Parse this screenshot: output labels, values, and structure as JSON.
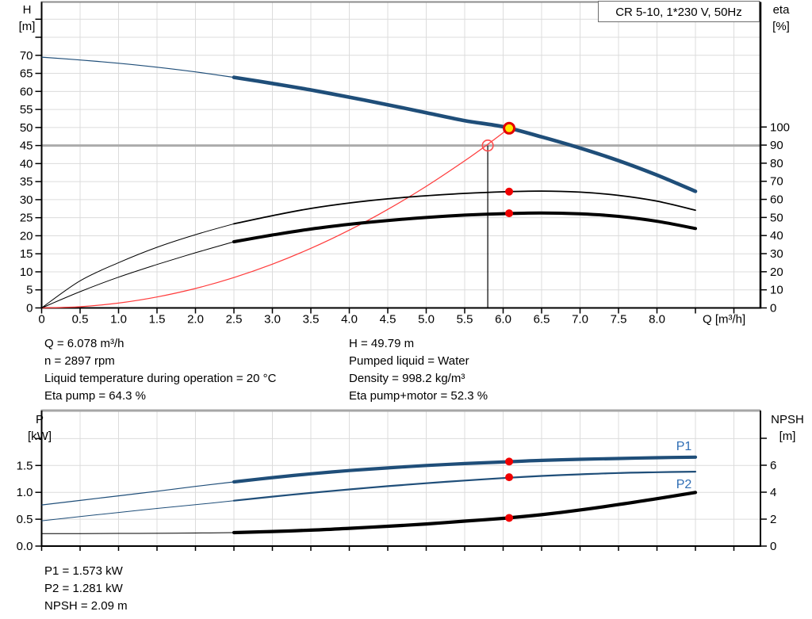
{
  "title_box": {
    "label": "CR 5-10, 1*230 V, 50Hz"
  },
  "colors": {
    "curve_blue": "#1F4E79",
    "label_blue": "#2E6DB4",
    "red": "#F00000",
    "red_line": "#FF3B3B",
    "yellow": "#FFE800",
    "black": "#000000",
    "grid": "#DCDCDC",
    "grid_strong": "#ABABAB",
    "border_gray": "#8C8C8C",
    "border_gray_light": "#A6A6A6"
  },
  "info_top": {
    "left": [
      "Q = 6.078 m³/h",
      "n = 2897 rpm",
      "Liquid temperature during operation = 20 °C",
      "Eta pump = 64.3 %"
    ],
    "right": [
      "H = 49.79 m",
      "Pumped liquid = Water",
      "Density = 998.2 kg/m³",
      "Eta pump+motor = 52.3 %"
    ]
  },
  "info_bottom": {
    "lines": [
      "P1 = 1.573 kW",
      "P2 = 1.281 kW",
      "NPSH = 2.09 m"
    ]
  },
  "chart_data": [
    {
      "type": "line",
      "title": "CR 5-10, 1*230 V, 50Hz",
      "xlabel": "Q [m³/h]",
      "ylabel_left": "H [m]",
      "ylabel_right": "eta [%]",
      "xlim": [
        0,
        9.35
      ],
      "ylim_left": [
        0,
        84.8
      ],
      "ylim_right": [
        0,
        100
      ],
      "grid": true,
      "axes": {
        "x": {
          "tick_values": [
            0,
            0.5,
            1,
            1.5,
            2,
            2.5,
            3,
            3.5,
            4,
            4.5,
            5,
            5.5,
            6,
            6.5,
            7,
            7.5,
            8
          ],
          "tick_labels": [
            "0",
            "0.5",
            "1.0",
            "1.5",
            "2.0",
            "2.5",
            "3.0",
            "3.5",
            "4.0",
            "4.5",
            "5.0",
            "5.5",
            "6.0",
            "6.5",
            "7.0",
            "7.5",
            "8.0"
          ],
          "extra_ticks": [
            8.5,
            9
          ],
          "unit": "Q [m³/h]"
        },
        "left": {
          "tick_values": [
            0,
            5,
            10,
            15,
            20,
            25,
            30,
            35,
            40,
            45,
            50,
            55,
            60,
            65,
            70
          ],
          "tick_labels": [
            "0",
            "5",
            "10",
            "15",
            "20",
            "25",
            "30",
            "35",
            "40",
            "45",
            "50",
            "55",
            "60",
            "65",
            "70"
          ],
          "extra_ticks": [
            75,
            80
          ],
          "unit": [
            "H",
            "[m]"
          ]
        },
        "right": {
          "tick_values": [
            0,
            10,
            20,
            30,
            40,
            50,
            60,
            70,
            80,
            90,
            100
          ],
          "tick_labels": [
            "0",
            "10",
            "20",
            "30",
            "40",
            "50",
            "60",
            "70",
            "80",
            "90",
            "100"
          ],
          "extra_ticks": [],
          "unit": [
            "eta",
            "[%]"
          ]
        }
      },
      "series": [
        {
          "name": "system-curve",
          "axis": "left",
          "color_key": "red_line",
          "width_thin": 1.2,
          "width_thick": 1.2,
          "split": 99,
          "points": [
            [
              0,
              0
            ],
            [
              0.5,
              0.34
            ],
            [
              1,
              1.35
            ],
            [
              1.5,
              3.03
            ],
            [
              2,
              5.39
            ],
            [
              2.5,
              8.42
            ],
            [
              3,
              12.13
            ],
            [
              3.5,
              16.51
            ],
            [
              4,
              21.56
            ],
            [
              4.5,
              27.29
            ],
            [
              5,
              33.69
            ],
            [
              5.5,
              40.77
            ],
            [
              5.8,
              45.34
            ],
            [
              6.078,
              49.79
            ]
          ]
        },
        {
          "name": "eta-pump",
          "axis": "right",
          "color_key": "black",
          "width_thin": 1,
          "width_thick": 1.8,
          "split": 2.5,
          "points": [
            [
              0,
              0
            ],
            [
              0.5,
              15
            ],
            [
              1,
              25
            ],
            [
              1.5,
              33.5
            ],
            [
              2,
              40.5
            ],
            [
              2.5,
              46.5
            ],
            [
              3,
              51
            ],
            [
              3.5,
              55
            ],
            [
              4,
              58
            ],
            [
              4.5,
              60.3
            ],
            [
              5,
              62
            ],
            [
              5.5,
              63.3
            ],
            [
              6,
              64.2
            ],
            [
              6.5,
              64.6
            ],
            [
              7,
              64
            ],
            [
              7.5,
              62.2
            ],
            [
              8,
              59
            ],
            [
              8.5,
              54
            ]
          ]
        },
        {
          "name": "eta-pump-motor",
          "axis": "right",
          "color_key": "black",
          "width_thin": 1,
          "width_thick": 4,
          "split": 2.5,
          "points": [
            [
              0,
              0
            ],
            [
              0.5,
              9
            ],
            [
              1,
              17
            ],
            [
              1.5,
              24
            ],
            [
              2,
              30.5
            ],
            [
              2.5,
              36.6
            ],
            [
              3,
              40.3
            ],
            [
              3.5,
              43.6
            ],
            [
              4,
              46.2
            ],
            [
              4.5,
              48.3
            ],
            [
              5,
              50
            ],
            [
              5.5,
              51.3
            ],
            [
              6,
              52.1
            ],
            [
              6.5,
              52.5
            ],
            [
              7,
              52
            ],
            [
              7.5,
              50.6
            ],
            [
              8,
              47.9
            ],
            [
              8.5,
              43.9
            ]
          ]
        },
        {
          "name": "head-curve",
          "axis": "left",
          "color_key": "curve_blue",
          "width_thin": 1.2,
          "width_thick": 4.6,
          "split": 2.5,
          "points": [
            [
              0,
              69.5
            ],
            [
              0.5,
              68.7
            ],
            [
              1,
              67.8
            ],
            [
              1.5,
              66.7
            ],
            [
              2,
              65.4
            ],
            [
              2.5,
              63.9
            ],
            [
              3,
              62.2
            ],
            [
              3.5,
              60.4
            ],
            [
              4,
              58.4
            ],
            [
              4.5,
              56.3
            ],
            [
              5,
              54.1
            ],
            [
              5.5,
              51.9
            ],
            [
              6,
              50.2
            ],
            [
              6.5,
              47.4
            ],
            [
              7,
              44.3
            ],
            [
              7.5,
              40.8
            ],
            [
              8,
              36.8
            ],
            [
              8.5,
              32.3
            ]
          ]
        }
      ],
      "markers": {
        "operating_point": {
          "q": 6.078,
          "h": 49.79
        },
        "duty_point": {
          "q": 5.8,
          "h": 45
        },
        "eta_dots": [
          {
            "q": 6.078,
            "eta": 64.3
          },
          {
            "q": 6.078,
            "eta": 52.3
          }
        ]
      },
      "guides": {
        "h_line": 45,
        "v_line_q": 5.8
      }
    },
    {
      "type": "line",
      "title": "",
      "xlabel": "",
      "ylabel_left": "P [kW]",
      "ylabel_right": "NPSH [m]",
      "xlim": [
        0,
        9.35
      ],
      "ylim_left": [
        0,
        2.52
      ],
      "ylim_right": [
        0,
        10.05
      ],
      "grid": true,
      "axes": {
        "x": {
          "tick_values": [],
          "tick_labels": [],
          "extra_ticks": [
            0,
            0.5,
            1,
            1.5,
            2,
            2.5,
            3,
            3.5,
            4,
            4.5,
            5,
            5.5,
            6,
            6.5,
            7,
            7.5,
            8,
            8.5,
            9
          ],
          "unit": ""
        },
        "left": {
          "tick_values": [
            0,
            0.5,
            1,
            1.5
          ],
          "tick_labels": [
            "0.0",
            "0.5",
            "1.0",
            "1.5"
          ],
          "extra_ticks": [
            2
          ],
          "unit": [
            "P",
            "[kW]"
          ]
        },
        "right": {
          "tick_values": [
            0,
            2,
            4,
            6
          ],
          "tick_labels": [
            "0",
            "2",
            "4",
            "6"
          ],
          "extra_ticks": [
            8
          ],
          "unit": [
            "NPSH",
            "[m]"
          ]
        }
      },
      "series": [
        {
          "name": "p2-curve",
          "axis": "left",
          "color_key": "curve_blue",
          "width_thin": 1,
          "width_thick": 2.2,
          "split": 2.5,
          "points": [
            [
              0,
              0.47
            ],
            [
              0.5,
              0.55
            ],
            [
              1,
              0.625
            ],
            [
              1.5,
              0.7
            ],
            [
              2,
              0.77
            ],
            [
              2.5,
              0.845
            ],
            [
              3,
              0.92
            ],
            [
              3.5,
              0.99
            ],
            [
              4,
              1.055
            ],
            [
              4.5,
              1.115
            ],
            [
              5,
              1.17
            ],
            [
              5.5,
              1.22
            ],
            [
              6,
              1.265
            ],
            [
              6.5,
              1.305
            ],
            [
              7,
              1.335
            ],
            [
              7.5,
              1.36
            ],
            [
              8,
              1.375
            ],
            [
              8.5,
              1.385
            ]
          ]
        },
        {
          "name": "p1-curve",
          "axis": "left",
          "color_key": "curve_blue",
          "width_thin": 1.2,
          "width_thick": 4.2,
          "split": 2.5,
          "points": [
            [
              0,
              0.765
            ],
            [
              0.5,
              0.85
            ],
            [
              1,
              0.935
            ],
            [
              1.5,
              1.02
            ],
            [
              2,
              1.11
            ],
            [
              2.5,
              1.195
            ],
            [
              3,
              1.275
            ],
            [
              3.5,
              1.345
            ],
            [
              4,
              1.405
            ],
            [
              4.5,
              1.455
            ],
            [
              5,
              1.5
            ],
            [
              5.5,
              1.535
            ],
            [
              6,
              1.565
            ],
            [
              6.5,
              1.595
            ],
            [
              7,
              1.615
            ],
            [
              7.5,
              1.63
            ],
            [
              8,
              1.645
            ],
            [
              8.5,
              1.655
            ]
          ]
        },
        {
          "name": "npsh-curve",
          "axis": "right",
          "color_key": "black",
          "width_thin": 1,
          "width_thick": 4.2,
          "split": 2.5,
          "points": [
            [
              0,
              0.93
            ],
            [
              0.5,
              0.93
            ],
            [
              1,
              0.94
            ],
            [
              1.5,
              0.95
            ],
            [
              2,
              0.97
            ],
            [
              2.5,
              1.0
            ],
            [
              3,
              1.08
            ],
            [
              3.5,
              1.18
            ],
            [
              4,
              1.32
            ],
            [
              4.5,
              1.47
            ],
            [
              5,
              1.64
            ],
            [
              5.5,
              1.85
            ],
            [
              6,
              2.06
            ],
            [
              6.5,
              2.33
            ],
            [
              7,
              2.68
            ],
            [
              7.5,
              3.08
            ],
            [
              8,
              3.52
            ],
            [
              8.5,
              3.98
            ]
          ]
        }
      ],
      "markers": {
        "dots": [
          {
            "q": 6.078,
            "v": 1.573,
            "axis": "left"
          },
          {
            "q": 6.078,
            "v": 1.281,
            "axis": "left"
          },
          {
            "q": 6.078,
            "v": 2.09,
            "axis": "right"
          }
        ]
      },
      "curve_labels": [
        {
          "text": "P1",
          "x": 8.25,
          "y_axis": "left"
        },
        {
          "text": "P2",
          "x": 8.25,
          "y_axis": "left"
        }
      ]
    }
  ]
}
